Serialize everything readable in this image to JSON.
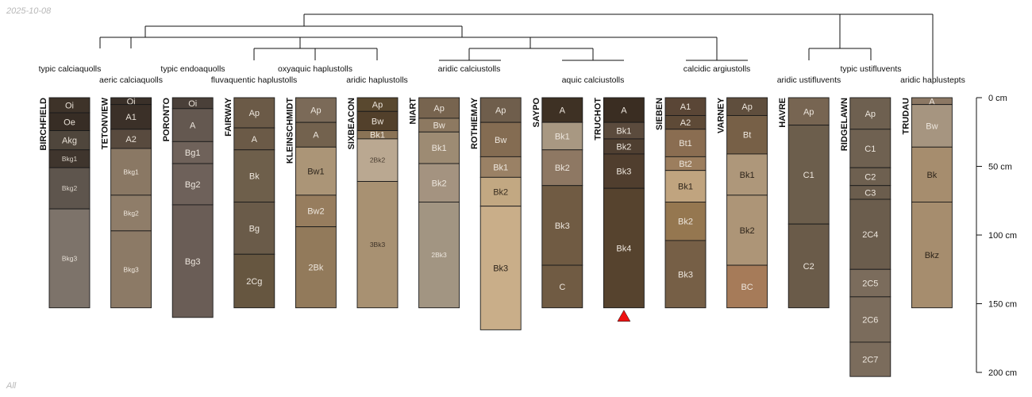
{
  "header": {
    "date": "2025-10-08"
  },
  "footer": {
    "label": "All"
  },
  "depth_axis": {
    "unit": "cm",
    "ticks": [
      0,
      50,
      100,
      150,
      200
    ],
    "tick_labels": [
      "0 cm",
      "50 cm",
      "100 cm",
      "150 cm",
      "200 cm"
    ]
  },
  "taxa": [
    "typic calciaquolls",
    "aeric calciaquolls",
    "typic endoaquolls",
    "fluvaquentic haplustolls",
    "oxyaquic haplustolls",
    "aridic haplustolls",
    "aridic calciustolls",
    "aquic calciustolls",
    "calcidic argiustolls",
    "aridic ustifluvents",
    "typic ustifluvents",
    "aridic haplustepts"
  ],
  "marker": {
    "profile": "TRUCHOT",
    "color": "#ee1111",
    "shape": "triangle-up"
  },
  "profiles": [
    {
      "name": "BIRCHFIELD",
      "horizons": [
        {
          "name": "Oi",
          "top": 0,
          "bottom": 11,
          "color": "#3e3329",
          "text": "#e8e0d6"
        },
        {
          "name": "Oe",
          "top": 11,
          "bottom": 24,
          "color": "#372d25",
          "text": "#e8e0d6"
        },
        {
          "name": "Akg",
          "top": 24,
          "bottom": 38,
          "color": "#4f463c",
          "text": "#e8e0d6"
        },
        {
          "name": "Bkg1",
          "top": 38,
          "bottom": 51,
          "color": "#3f352d",
          "text": "#d8d0c6",
          "small": true
        },
        {
          "name": "Bkg2",
          "top": 51,
          "bottom": 81,
          "color": "#5e554d",
          "text": "#d8d0c6",
          "small": true
        },
        {
          "name": "Bkg3",
          "top": 81,
          "bottom": 153,
          "color": "#7d736a",
          "text": "#e4ddd4",
          "small": true
        }
      ]
    },
    {
      "name": "TETONVIEW",
      "horizons": [
        {
          "name": "Oi",
          "top": 0,
          "bottom": 5,
          "color": "#3a3029",
          "text": "#e8e0d6"
        },
        {
          "name": "A1",
          "top": 5,
          "bottom": 23,
          "color": "#3b3028",
          "text": "#e8e0d6"
        },
        {
          "name": "A2",
          "top": 23,
          "bottom": 37,
          "color": "#584a3e",
          "text": "#e8e0d6"
        },
        {
          "name": "Bkg1",
          "top": 37,
          "bottom": 71,
          "color": "#8a7864",
          "text": "#eee6dc",
          "small": true
        },
        {
          "name": "Bkg2",
          "top": 71,
          "bottom": 97,
          "color": "#8f7d69",
          "text": "#eee6dc",
          "small": true
        },
        {
          "name": "Bkg3",
          "top": 97,
          "bottom": 153,
          "color": "#8c7a66",
          "text": "#eee6dc",
          "small": true
        }
      ]
    },
    {
      "name": "PORONTO",
      "horizons": [
        {
          "name": "Oi",
          "top": 0,
          "bottom": 8,
          "color": "#4a4039",
          "text": "#e8e0d6"
        },
        {
          "name": "A",
          "top": 8,
          "bottom": 32,
          "color": "#645850",
          "text": "#ede6dd"
        },
        {
          "name": "Bg1",
          "top": 32,
          "bottom": 48,
          "color": "#6f625a",
          "text": "#ede6dd"
        },
        {
          "name": "Bg2",
          "top": 48,
          "bottom": 78,
          "color": "#6e615a",
          "text": "#ede6dd"
        },
        {
          "name": "Bg3",
          "top": 78,
          "bottom": 160,
          "color": "#6a5d56",
          "text": "#ede6dd"
        }
      ]
    },
    {
      "name": "FAIRWAY",
      "horizons": [
        {
          "name": "Ap",
          "top": 0,
          "bottom": 22,
          "color": "#6b5a47",
          "text": "#ede6dd"
        },
        {
          "name": "A",
          "top": 22,
          "bottom": 38,
          "color": "#6b5a47",
          "text": "#ede6dd"
        },
        {
          "name": "Bk",
          "top": 38,
          "bottom": 76,
          "color": "#6e5f4b",
          "text": "#ede6dd"
        },
        {
          "name": "Bg",
          "top": 76,
          "bottom": 114,
          "color": "#6a5b49",
          "text": "#ede6dd"
        },
        {
          "name": "2Cg",
          "top": 114,
          "bottom": 153,
          "color": "#665640",
          "text": "#ede6dd"
        }
      ]
    },
    {
      "name": "KLEINSCHMIDT",
      "horizons": [
        {
          "name": "Ap",
          "top": 0,
          "bottom": 18,
          "color": "#7b6a58",
          "text": "#ede6dd"
        },
        {
          "name": "A",
          "top": 18,
          "bottom": 36,
          "color": "#73624e",
          "text": "#ede6dd"
        },
        {
          "name": "Bw1",
          "top": 36,
          "bottom": 71,
          "color": "#ab9577",
          "text": "#2e261d"
        },
        {
          "name": "Bw2",
          "top": 71,
          "bottom": 94,
          "color": "#977d5e",
          "text": "#ede6dd"
        },
        {
          "name": "2Bk",
          "top": 94,
          "bottom": 153,
          "color": "#927a5b",
          "text": "#ede6dd"
        }
      ]
    },
    {
      "name": "SIXBEACON",
      "horizons": [
        {
          "name": "Ap",
          "top": 0,
          "bottom": 10,
          "color": "#59482f",
          "text": "#ede6dd"
        },
        {
          "name": "Bw",
          "top": 10,
          "bottom": 24,
          "color": "#52402b",
          "text": "#ede6dd"
        },
        {
          "name": "Bk1",
          "top": 24,
          "bottom": 30,
          "color": "#8a7356",
          "text": "#ede6dd"
        },
        {
          "name": "2Bk2",
          "top": 30,
          "bottom": 61,
          "color": "#baa891",
          "text": "#4a3e31",
          "small": true
        },
        {
          "name": "3Bk3",
          "top": 61,
          "bottom": 153,
          "color": "#a89172",
          "text": "#3e3328",
          "small": true
        }
      ]
    },
    {
      "name": "NIART",
      "horizons": [
        {
          "name": "Ap",
          "top": 0,
          "bottom": 15,
          "color": "#77644f",
          "text": "#ede6dd"
        },
        {
          "name": "Bw",
          "top": 15,
          "bottom": 25,
          "color": "#8d7961",
          "text": "#ede6dd"
        },
        {
          "name": "Bk1",
          "top": 25,
          "bottom": 48,
          "color": "#9d8b73",
          "text": "#ede6dd"
        },
        {
          "name": "Bk2",
          "top": 48,
          "bottom": 76,
          "color": "#a49380",
          "text": "#ede6dd"
        },
        {
          "name": "2Bk3",
          "top": 76,
          "bottom": 153,
          "color": "#a29582",
          "text": "#ede6dd",
          "small": true
        }
      ]
    },
    {
      "name": "ROTHIEMAY",
      "horizons": [
        {
          "name": "Ap",
          "top": 0,
          "bottom": 18,
          "color": "#6f5e4c",
          "text": "#ede6dd"
        },
        {
          "name": "Bw",
          "top": 18,
          "bottom": 43,
          "color": "#846c52",
          "text": "#ede6dd"
        },
        {
          "name": "Bk1",
          "top": 43,
          "bottom": 58,
          "color": "#9a8165",
          "text": "#ede6dd"
        },
        {
          "name": "Bk2",
          "top": 58,
          "bottom": 79,
          "color": "#c2a882",
          "text": "#3a2f22"
        },
        {
          "name": "Bk3",
          "top": 79,
          "bottom": 169,
          "color": "#c9ae89",
          "text": "#2e251b"
        }
      ]
    },
    {
      "name": "SAYPO",
      "horizons": [
        {
          "name": "A",
          "top": 0,
          "bottom": 18,
          "color": "#3e3124",
          "text": "#ede6dd"
        },
        {
          "name": "Bk1",
          "top": 18,
          "bottom": 38,
          "color": "#a89882",
          "text": "#ede6dd"
        },
        {
          "name": "Bk2",
          "top": 38,
          "bottom": 64,
          "color": "#8e7863",
          "text": "#ede6dd"
        },
        {
          "name": "Bk3",
          "top": 64,
          "bottom": 122,
          "color": "#705b43",
          "text": "#ede6dd"
        },
        {
          "name": "C",
          "top": 122,
          "bottom": 153,
          "color": "#705b43",
          "text": "#ede6dd"
        }
      ]
    },
    {
      "name": "TRUCHOT",
      "horizons": [
        {
          "name": "A",
          "top": 0,
          "bottom": 18,
          "color": "#3a2d22",
          "text": "#ede6dd"
        },
        {
          "name": "Bk1",
          "top": 18,
          "bottom": 30,
          "color": "#5b4b3d",
          "text": "#ede6dd"
        },
        {
          "name": "Bk2",
          "top": 30,
          "bottom": 41,
          "color": "#4f3f31",
          "text": "#ede6dd"
        },
        {
          "name": "Bk3",
          "top": 41,
          "bottom": 66,
          "color": "#503e2e",
          "text": "#ede6dd"
        },
        {
          "name": "Bk4",
          "top": 66,
          "bottom": 153,
          "color": "#56432e",
          "text": "#ede6dd"
        }
      ]
    },
    {
      "name": "SIEBEN",
      "horizons": [
        {
          "name": "A1",
          "top": 0,
          "bottom": 13,
          "color": "#5a4636",
          "text": "#ede6dd"
        },
        {
          "name": "A2",
          "top": 13,
          "bottom": 23,
          "color": "#5e4a37",
          "text": "#ede6dd"
        },
        {
          "name": "Bt1",
          "top": 23,
          "bottom": 43,
          "color": "#8a6d51",
          "text": "#ede6dd"
        },
        {
          "name": "Bt2",
          "top": 43,
          "bottom": 53,
          "color": "#9c7e5e",
          "text": "#ede6dd"
        },
        {
          "name": "Bk1",
          "top": 53,
          "bottom": 76,
          "color": "#c0a47f",
          "text": "#2e251b"
        },
        {
          "name": "Bk2",
          "top": 76,
          "bottom": 104,
          "color": "#957750",
          "text": "#ede6dd"
        },
        {
          "name": "Bk3",
          "top": 104,
          "bottom": 153,
          "color": "#765f46",
          "text": "#ede6dd"
        }
      ]
    },
    {
      "name": "VARNEY",
      "horizons": [
        {
          "name": "Ap",
          "top": 0,
          "bottom": 13,
          "color": "#5f4e3d",
          "text": "#ede6dd"
        },
        {
          "name": "Bt",
          "top": 13,
          "bottom": 41,
          "color": "#776047",
          "text": "#ede6dd"
        },
        {
          "name": "Bk1",
          "top": 41,
          "bottom": 71,
          "color": "#ae977a",
          "text": "#2e251b"
        },
        {
          "name": "Bk2",
          "top": 71,
          "bottom": 122,
          "color": "#ad9577",
          "text": "#2e251b"
        },
        {
          "name": "BC",
          "top": 122,
          "bottom": 153,
          "color": "#a67b59",
          "text": "#ede6dd"
        }
      ]
    },
    {
      "name": "HAVRE",
      "horizons": [
        {
          "name": "Ap",
          "top": 0,
          "bottom": 20,
          "color": "#776552",
          "text": "#ede6dd"
        },
        {
          "name": "C1",
          "top": 20,
          "bottom": 92,
          "color": "#6c5e4c",
          "text": "#ede6dd"
        },
        {
          "name": "C2",
          "top": 92,
          "bottom": 153,
          "color": "#6a5b49",
          "text": "#ede6dd"
        }
      ]
    },
    {
      "name": "RIDGELAWN",
      "horizons": [
        {
          "name": "Ap",
          "top": 0,
          "bottom": 23,
          "color": "#6e6050",
          "text": "#ede6dd"
        },
        {
          "name": "C1",
          "top": 23,
          "bottom": 51,
          "color": "#6f6151",
          "text": "#ede6dd"
        },
        {
          "name": "C2",
          "top": 51,
          "bottom": 64,
          "color": "#6e6050",
          "text": "#ede6dd"
        },
        {
          "name": "C3",
          "top": 64,
          "bottom": 74,
          "color": "#6b5d4d",
          "text": "#ede6dd"
        },
        {
          "name": "2C4",
          "top": 74,
          "bottom": 125,
          "color": "#6b5d4d",
          "text": "#ede6dd"
        },
        {
          "name": "2C5",
          "top": 125,
          "bottom": 145,
          "color": "#7b6c5c",
          "text": "#ede6dd"
        },
        {
          "name": "2C6",
          "top": 145,
          "bottom": 178,
          "color": "#7b6c5c",
          "text": "#ede6dd"
        },
        {
          "name": "2C7",
          "top": 178,
          "bottom": 203,
          "color": "#7b6c5c",
          "text": "#ede6dd"
        }
      ]
    },
    {
      "name": "TRUDAU",
      "horizons": [
        {
          "name": "A",
          "top": 0,
          "bottom": 5,
          "color": "#8c7864",
          "text": "#ede6dd"
        },
        {
          "name": "Bw",
          "top": 5,
          "bottom": 36,
          "color": "#a69580",
          "text": "#ede6dd"
        },
        {
          "name": "Bk",
          "top": 36,
          "bottom": 76,
          "color": "#a68d6e",
          "text": "#2e251b"
        },
        {
          "name": "Bkz",
          "top": 76,
          "bottom": 153,
          "color": "#a68d6e",
          "text": "#2e251b"
        }
      ]
    }
  ]
}
